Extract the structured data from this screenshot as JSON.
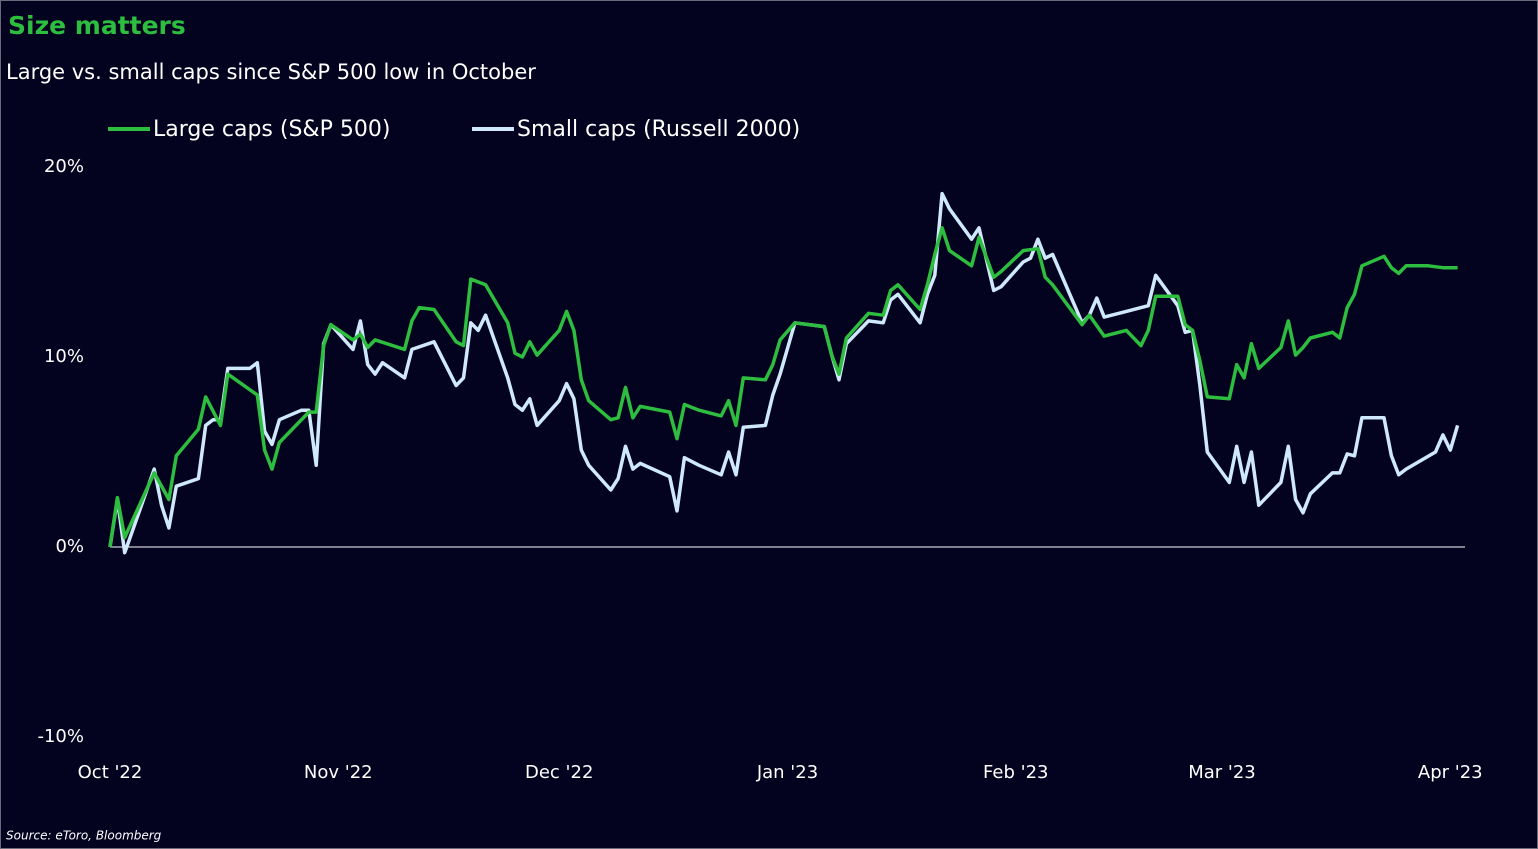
{
  "chart_data": {
    "type": "line",
    "title": "Size matters",
    "subtitle": "Large vs. small caps since S&P 500 low in October",
    "source": "Source: eToro, Bloomberg",
    "xlim": [
      0,
      184
    ],
    "xticks": [
      {
        "value": 0,
        "label": "Oct '22"
      },
      {
        "value": 31,
        "label": "Nov '22"
      },
      {
        "value": 61,
        "label": "Dec '22"
      },
      {
        "value": 92,
        "label": "Jan '23"
      },
      {
        "value": 123,
        "label": "Feb '23"
      },
      {
        "value": 151,
        "label": "Mar '23"
      },
      {
        "value": 182,
        "label": "Apr '23"
      }
    ],
    "ylim": [
      -10,
      20
    ],
    "yticks": [
      {
        "value": 20,
        "label": "20%"
      },
      {
        "value": 10,
        "label": "10%"
      },
      {
        "value": 0,
        "label": "0%"
      },
      {
        "value": -10,
        "label": "-10%"
      }
    ],
    "grid": false,
    "zero_line": true,
    "legend": "top-left",
    "series": [
      {
        "name": "Large caps (S&P 500)",
        "color": "#2dbd3f",
        "x": [
          0,
          1,
          2,
          6,
          8,
          9,
          12,
          13,
          15,
          16,
          20,
          21,
          22,
          23,
          27,
          28,
          29,
          30,
          33,
          34,
          35,
          36,
          40,
          41,
          42,
          44,
          47,
          48,
          49,
          51,
          54,
          55,
          56,
          57,
          58,
          61,
          62,
          63,
          64,
          65,
          68,
          69,
          70,
          71,
          72,
          76,
          77,
          78,
          80,
          83,
          84,
          85,
          86,
          89,
          90,
          91,
          93,
          97,
          98,
          99,
          100,
          103,
          105,
          106,
          107,
          110,
          111,
          112,
          113,
          114,
          117,
          118,
          120,
          121,
          124,
          126,
          127,
          128,
          132,
          133,
          135,
          138,
          140,
          141,
          142,
          145,
          146,
          147,
          148,
          149,
          152,
          153,
          154,
          155,
          156,
          159,
          160,
          161,
          162,
          163,
          166,
          167,
          168,
          169,
          170,
          173,
          174,
          175,
          176,
          179,
          181,
          183
        ],
        "values": [
          0,
          2.6,
          0.5,
          3.9,
          2.5,
          4.8,
          6.2,
          7.9,
          6.4,
          9.1,
          8.0,
          5.1,
          4.1,
          5.5,
          7.1,
          7.1,
          10.6,
          11.7,
          10.9,
          11.2,
          10.5,
          10.9,
          10.4,
          11.9,
          12.6,
          12.5,
          10.8,
          10.6,
          14.1,
          13.8,
          11.8,
          10.2,
          10.0,
          10.8,
          10.1,
          11.4,
          12.4,
          11.4,
          8.8,
          7.7,
          6.7,
          6.8,
          8.4,
          6.8,
          7.4,
          7.1,
          5.7,
          7.5,
          7.2,
          6.9,
          7.7,
          6.4,
          8.9,
          8.8,
          9.6,
          10.9,
          11.8,
          11.6,
          10.1,
          9.1,
          11.0,
          12.3,
          12.2,
          13.5,
          13.8,
          12.5,
          13.8,
          15.4,
          16.8,
          15.6,
          14.8,
          16.3,
          14.2,
          14.5,
          15.6,
          15.7,
          14.2,
          13.8,
          11.7,
          12.2,
          11.1,
          11.4,
          10.6,
          11.4,
          13.2,
          13.2,
          11.7,
          11.4,
          9.8,
          7.9,
          7.8,
          9.6,
          8.9,
          10.7,
          9.4,
          10.5,
          11.9,
          10.1,
          10.5,
          11.0,
          11.3,
          11.0,
          12.6,
          13.3,
          14.8,
          15.3,
          14.7,
          14.4,
          14.8,
          14.8,
          14.7,
          14.7
        ]
      },
      {
        "name": "Small caps (Russell 2000)",
        "color": "#cfe8fb",
        "x": [
          0,
          1,
          2,
          4,
          6,
          7,
          8,
          9,
          12,
          13,
          14,
          15,
          16,
          19,
          20,
          21,
          22,
          23,
          26,
          27,
          28,
          29,
          30,
          33,
          34,
          35,
          36,
          37,
          40,
          41,
          44,
          47,
          48,
          49,
          50,
          51,
          54,
          55,
          56,
          57,
          58,
          61,
          62,
          63,
          64,
          65,
          68,
          69,
          70,
          71,
          72,
          76,
          77,
          78,
          80,
          83,
          84,
          85,
          86,
          89,
          90,
          91,
          93,
          97,
          98,
          99,
          100,
          103,
          105,
          106,
          107,
          110,
          111,
          112,
          113,
          114,
          117,
          118,
          120,
          121,
          124,
          125,
          126,
          127,
          128,
          132,
          133,
          134,
          135,
          138,
          140,
          141,
          142,
          145,
          146,
          147,
          148,
          149,
          152,
          153,
          154,
          155,
          156,
          159,
          160,
          161,
          162,
          163,
          166,
          167,
          168,
          169,
          170,
          173,
          174,
          175,
          176,
          180,
          181,
          182,
          183
        ],
        "values": [
          0,
          2.5,
          -0.3,
          1.9,
          4.1,
          2.2,
          1.0,
          3.2,
          3.6,
          6.4,
          6.7,
          6.7,
          9.4,
          9.4,
          9.7,
          6.1,
          5.4,
          6.7,
          7.2,
          7.2,
          4.3,
          10.7,
          11.7,
          10.4,
          11.9,
          9.6,
          9.1,
          9.7,
          8.9,
          10.4,
          10.8,
          8.5,
          8.9,
          11.8,
          11.4,
          12.2,
          8.9,
          7.5,
          7.2,
          7.8,
          6.4,
          7.7,
          8.6,
          7.8,
          5.1,
          4.3,
          3.0,
          3.6,
          5.3,
          4.1,
          4.4,
          3.7,
          1.9,
          4.7,
          4.3,
          3.8,
          5.0,
          3.8,
          6.3,
          6.4,
          8.0,
          9.1,
          11.8,
          11.6,
          10.1,
          8.8,
          10.7,
          11.9,
          11.8,
          13.0,
          13.3,
          11.8,
          13.3,
          14.3,
          18.6,
          17.8,
          16.2,
          16.8,
          13.5,
          13.7,
          15.0,
          15.2,
          16.2,
          15.2,
          15.4,
          11.8,
          12.2,
          13.1,
          12.1,
          12.4,
          12.6,
          12.7,
          14.3,
          12.7,
          11.3,
          11.4,
          8.5,
          5.0,
          3.4,
          5.3,
          3.4,
          5.0,
          2.2,
          3.4,
          5.3,
          2.5,
          1.8,
          2.8,
          3.9,
          3.9,
          4.9,
          4.8,
          6.8,
          6.8,
          4.8,
          3.8,
          4.1,
          5.0,
          5.9,
          5.1,
          6.4
        ]
      }
    ]
  }
}
